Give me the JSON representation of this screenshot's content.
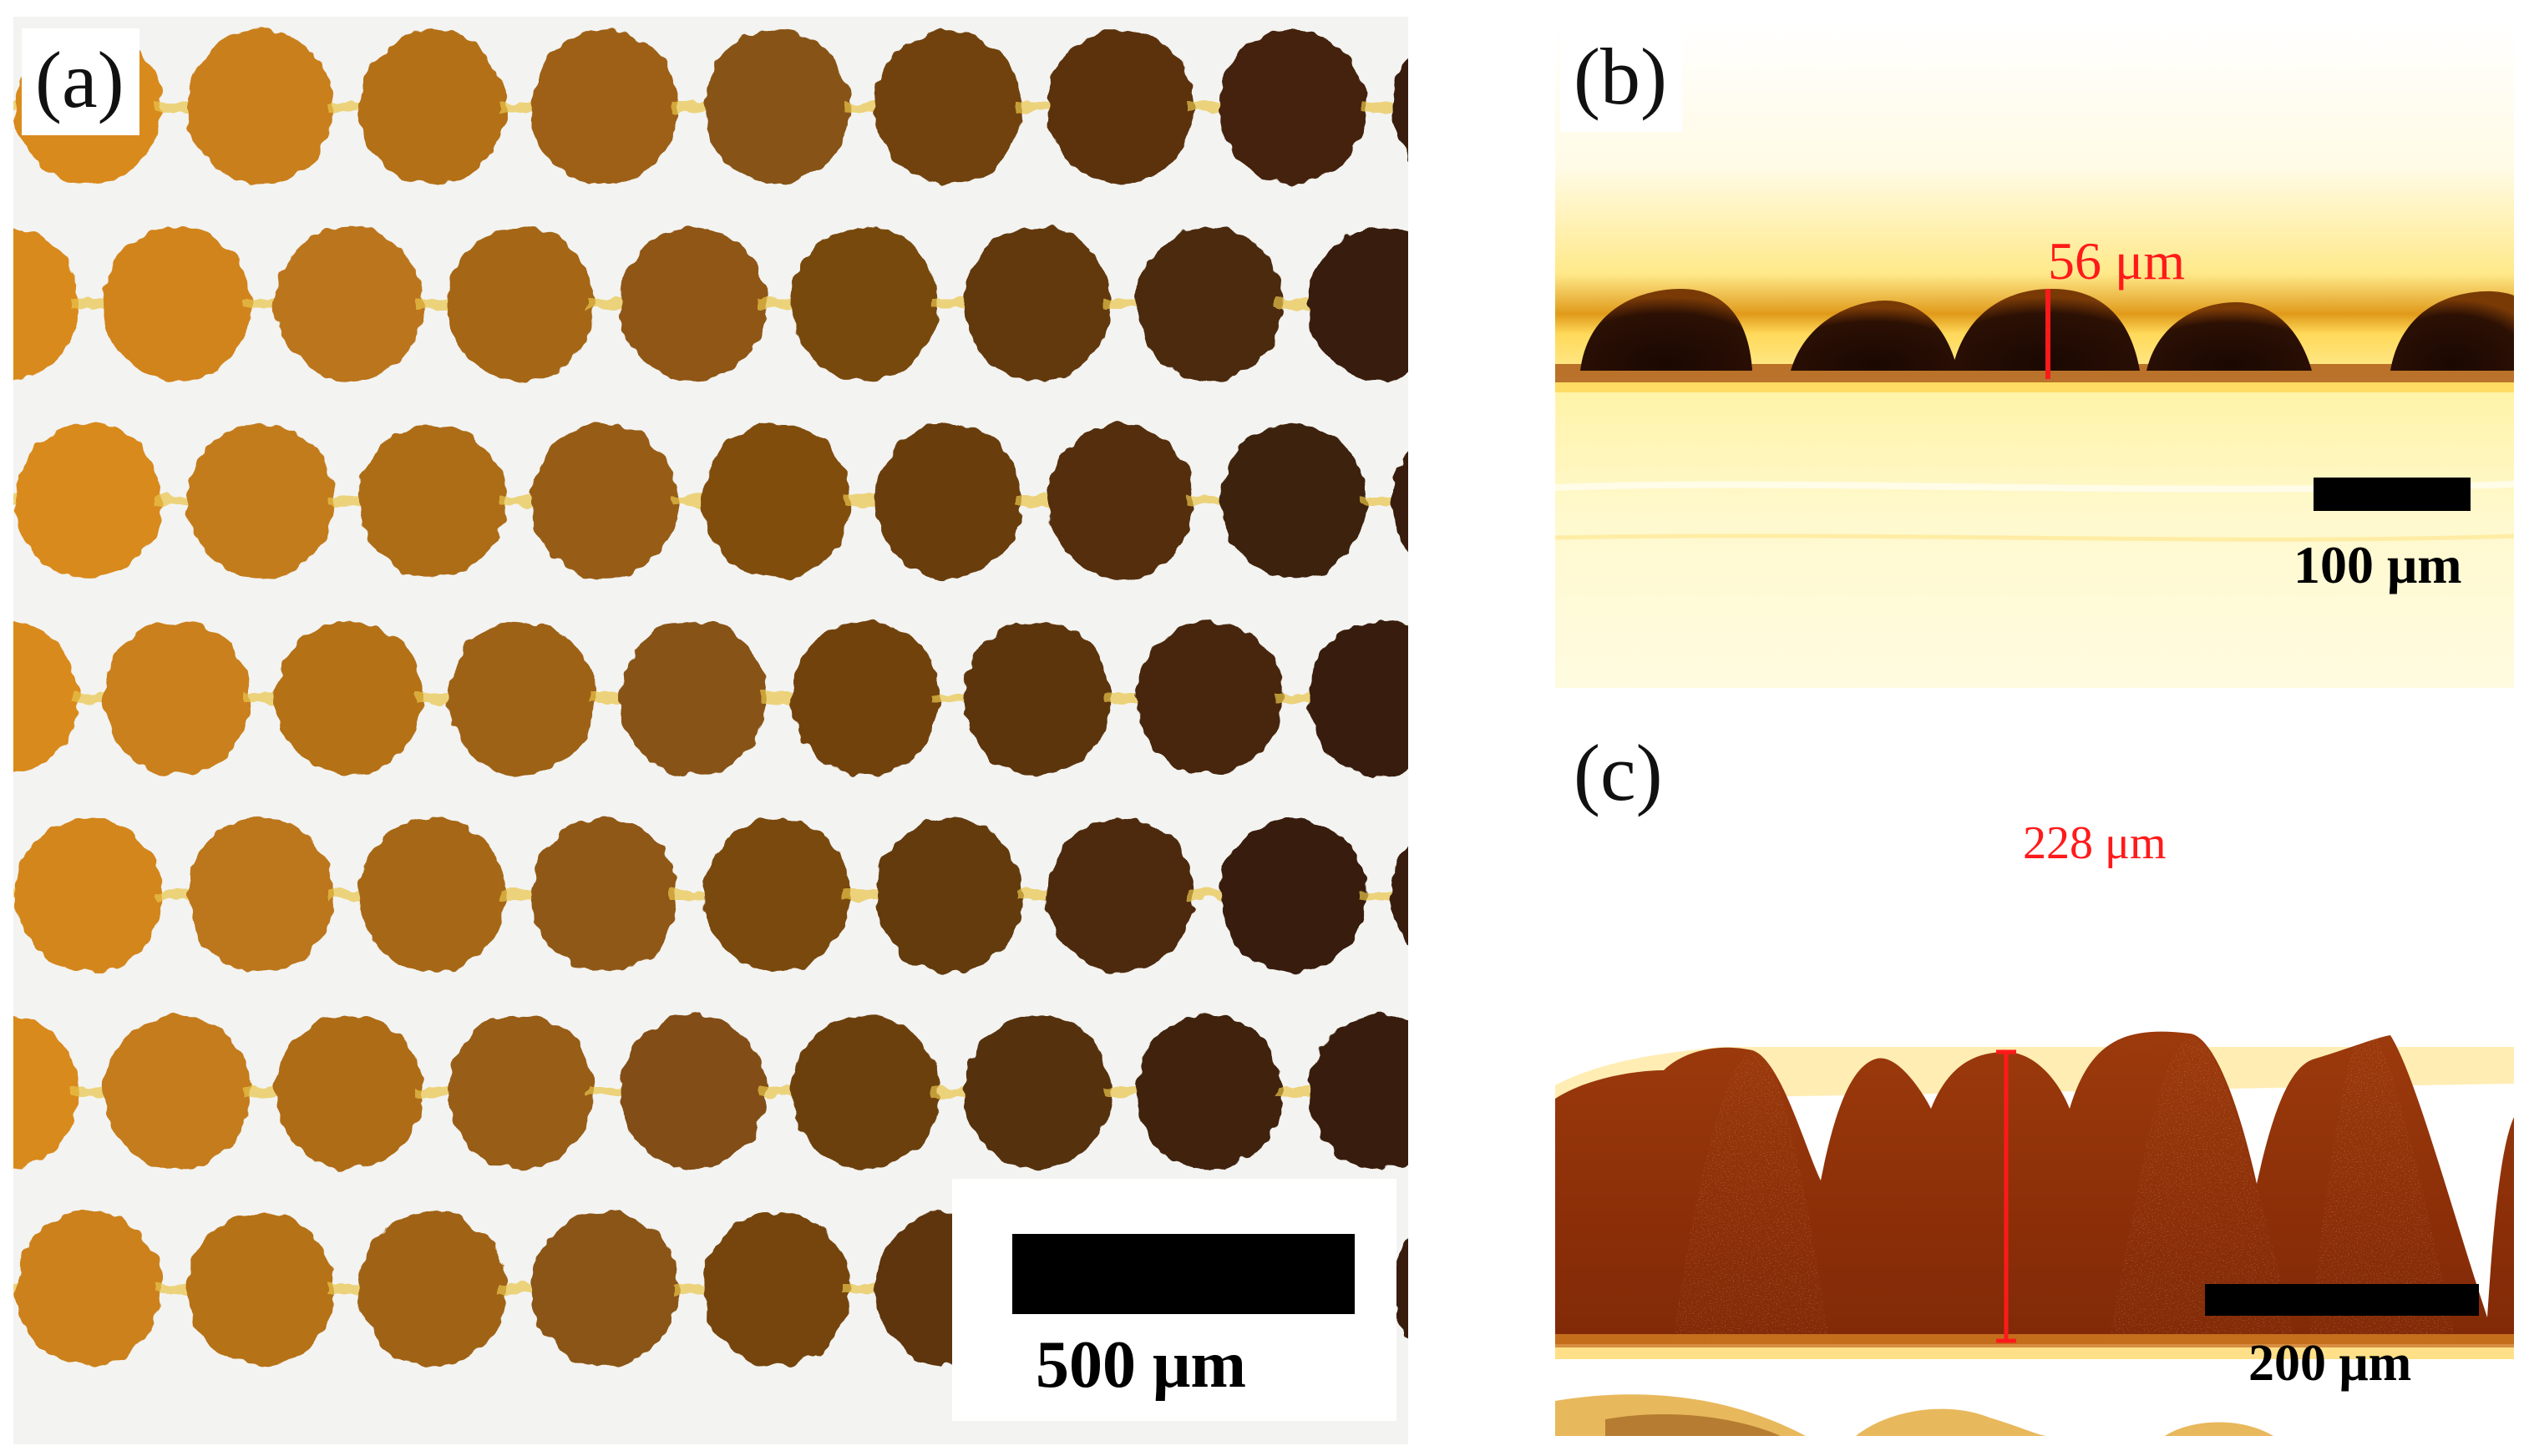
{
  "figure": {
    "panels": [
      {
        "id": "a",
        "label": "(a)",
        "view": "top view of microstructure array",
        "scale_bar": {
          "text": "500 μm"
        }
      },
      {
        "id": "b",
        "label": "(b)",
        "view": "cross-section",
        "measurement": {
          "text": "56 μm"
        },
        "scale_bar": {
          "text": "100 μm"
        }
      },
      {
        "id": "c",
        "label": "(c)",
        "view": "cross-section",
        "measurement": {
          "text": "228 μm"
        },
        "scale_bar": {
          "text": "200 μm"
        }
      }
    ],
    "colors": {
      "measurement": "#ff1a1a",
      "scale_bar": "#000000",
      "dot_light": "#d98a1e",
      "dot_dark": "#2a1205",
      "film_b": "#fff2a0",
      "film_c": "#8a2e08"
    }
  }
}
